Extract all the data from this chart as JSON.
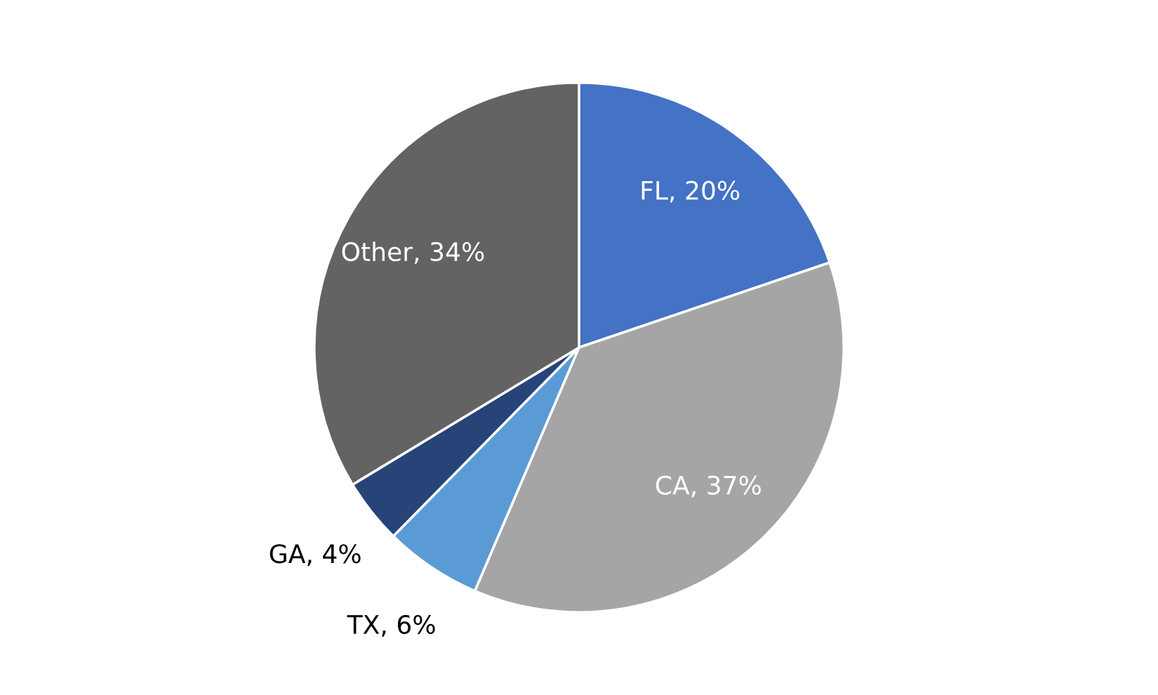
{
  "chart_data": {
    "type": "pie",
    "categories": [
      "FL",
      "CA",
      "TX",
      "GA",
      "Other"
    ],
    "values": [
      20,
      37,
      6,
      4,
      34
    ],
    "value_labels": [
      "20%",
      "37%",
      "6%",
      "4%",
      "34%"
    ],
    "colors": [
      "#4472c4",
      "#a5a5a5",
      "#5b9bd5",
      "#264478",
      "#636363"
    ],
    "legend": false
  }
}
